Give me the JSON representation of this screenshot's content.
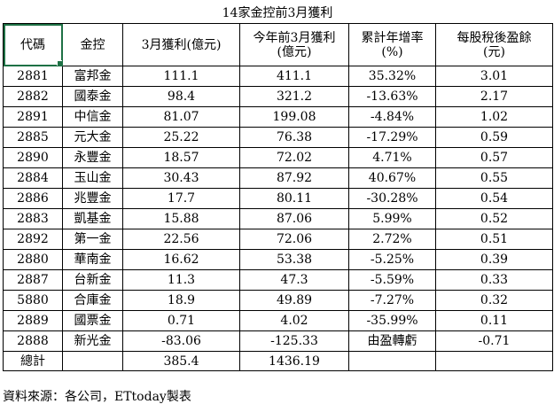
{
  "title": "14家金控前3月獲利",
  "headers": {
    "code": "代碼",
    "name": "金控",
    "march_profit": "3月獲利(億元)",
    "ytd_profit_line1": "今年前3月獲利",
    "ytd_profit_line2": "(億元)",
    "growth_line1": "累計年增率",
    "growth_line2": "(%)",
    "eps_line1": "每股稅後盈餘",
    "eps_line2": "(元)"
  },
  "rows": [
    {
      "code": "2881",
      "name": "富邦金",
      "march": "111.1",
      "ytd": "411.1",
      "growth": "35.32%",
      "eps": "3.01"
    },
    {
      "code": "2882",
      "name": "國泰金",
      "march": "98.4",
      "ytd": "321.2",
      "growth": "-13.63%",
      "eps": "2.17"
    },
    {
      "code": "2891",
      "name": "中信金",
      "march": "81.07",
      "ytd": "199.08",
      "growth": "-4.84%",
      "eps": "1.02"
    },
    {
      "code": "2885",
      "name": "元大金",
      "march": "25.22",
      "ytd": "76.38",
      "growth": "-17.29%",
      "eps": "0.59"
    },
    {
      "code": "2890",
      "name": "永豐金",
      "march": "18.57",
      "ytd": "72.02",
      "growth": "4.71%",
      "eps": "0.57"
    },
    {
      "code": "2884",
      "name": "玉山金",
      "march": "30.43",
      "ytd": "87.92",
      "growth": "40.67%",
      "eps": "0.55"
    },
    {
      "code": "2886",
      "name": "兆豐金",
      "march": "17.7",
      "ytd": "80.11",
      "growth": "-30.28%",
      "eps": "0.54"
    },
    {
      "code": "2883",
      "name": "凱基金",
      "march": "15.88",
      "ytd": "87.06",
      "growth": "5.99%",
      "eps": "0.52"
    },
    {
      "code": "2892",
      "name": "第一金",
      "march": "22.56",
      "ytd": "72.06",
      "growth": "2.72%",
      "eps": "0.51"
    },
    {
      "code": "2880",
      "name": "華南金",
      "march": "16.62",
      "ytd": "53.38",
      "growth": "-5.25%",
      "eps": "0.39"
    },
    {
      "code": "2887",
      "name": "台新金",
      "march": "11.3",
      "ytd": "47.3",
      "growth": "-5.59%",
      "eps": "0.33"
    },
    {
      "code": "5880",
      "name": "合庫金",
      "march": "18.9",
      "ytd": "49.89",
      "growth": "-7.27%",
      "eps": "0.32"
    },
    {
      "code": "2889",
      "name": "國票金",
      "march": "0.71",
      "ytd": "4.02",
      "growth": "-35.99%",
      "eps": "0.11"
    },
    {
      "code": "2888",
      "name": "新光金",
      "march": "-83.06",
      "ytd": "-125.33",
      "growth": "由盈轉虧",
      "eps": "-0.71"
    }
  ],
  "total": {
    "label": "總計",
    "march": "385.4",
    "ytd": "1436.19"
  },
  "footer": "資料來源：各公司，ETtoday製表",
  "colors": {
    "selection": "#1e7145",
    "grid": "#000000",
    "background": "#ffffff"
  }
}
